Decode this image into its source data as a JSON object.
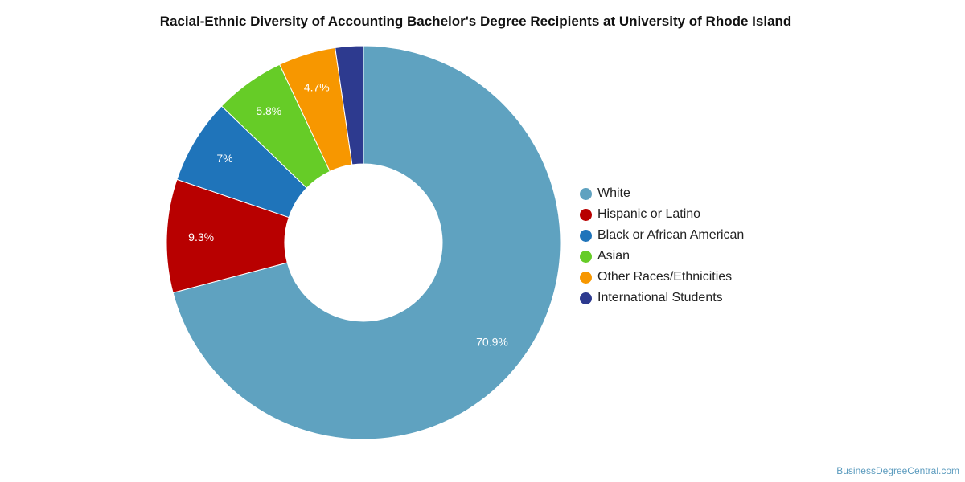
{
  "chart_data": {
    "type": "pie",
    "title": "Racial-Ethnic Diversity of Accounting Bachelor's Degree Recipients at University of Rhode Island",
    "categories": [
      "White",
      "Hispanic or Latino",
      "Black or African American",
      "Asian",
      "Other Races/Ethnicities",
      "International Students"
    ],
    "values": [
      70.9,
      9.3,
      7.0,
      5.8,
      4.7,
      2.3
    ],
    "data_labels": [
      "70.9%",
      "9.3%",
      "7%",
      "5.8%",
      "4.7%",
      ""
    ],
    "colors": [
      "#5fa2c0",
      "#b80000",
      "#1f74ba",
      "#66cc27",
      "#f79700",
      "#2d3a8f"
    ],
    "legend_position": "right",
    "start_angle": "top",
    "direction": "clockwise"
  },
  "watermark": "BusinessDegreeCentral.com"
}
